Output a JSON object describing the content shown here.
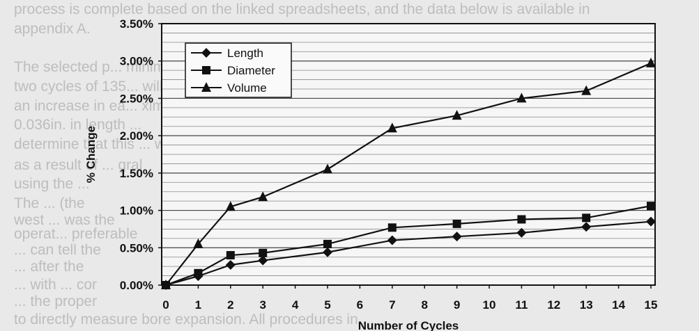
{
  "document": {
    "background_lines": [
      "process is complete based on the linked spreadsheets, and the data below is available in",
      "appendix A.",
      "The selected p... minimum",
      "two cycles of 135... will",
      "an increase in ea... ximately",
      "0.036in. in length ...",
      "determine that this ... which fo",
      "as a result of ... gral",
      "using the ...",
      "The ... (the",
      "west ... was the",
      "operat... preferable",
      "... can tell the",
      "... after the",
      "... with ... cor",
      "... the proper",
      "to directly measure bore expansion. All procedures in ..."
    ]
  },
  "chart_data": {
    "type": "line",
    "title": "",
    "xlabel": "Number of Cycles",
    "ylabel": "% Change",
    "xlim": [
      0,
      15
    ],
    "ylim": [
      0,
      3.5
    ],
    "x_ticks": [
      "0",
      "1",
      "2",
      "3",
      "4",
      "5",
      "6",
      "7",
      "8",
      "9",
      "10",
      "11",
      "12",
      "13",
      "14",
      "15"
    ],
    "y_ticks": [
      "0.00%",
      "0.50%",
      "1.00%",
      "1.50%",
      "2.00%",
      "2.50%",
      "3.00%",
      "3.50%"
    ],
    "grid": "horizontal",
    "legend_position": "top-left",
    "series": [
      {
        "name": "Length",
        "marker": "diamond",
        "x": [
          0,
          1,
          2,
          3,
          5,
          7,
          9,
          11,
          13,
          15
        ],
        "values": [
          0.0,
          0.12,
          0.27,
          0.33,
          0.44,
          0.6,
          0.65,
          0.7,
          0.78,
          0.85
        ],
        "color": "#111111"
      },
      {
        "name": "Diameter",
        "marker": "square",
        "x": [
          0,
          1,
          2,
          3,
          5,
          7,
          9,
          11,
          13,
          15
        ],
        "values": [
          0.0,
          0.16,
          0.4,
          0.43,
          0.55,
          0.77,
          0.82,
          0.88,
          0.9,
          1.06
        ],
        "color": "#111111"
      },
      {
        "name": "Volume",
        "marker": "triangle",
        "x": [
          0,
          1,
          2,
          3,
          5,
          7,
          9,
          11,
          13,
          15
        ],
        "values": [
          0.0,
          0.55,
          1.05,
          1.18,
          1.55,
          2.1,
          2.27,
          2.5,
          2.6,
          2.97
        ],
        "color": "#111111"
      }
    ]
  }
}
